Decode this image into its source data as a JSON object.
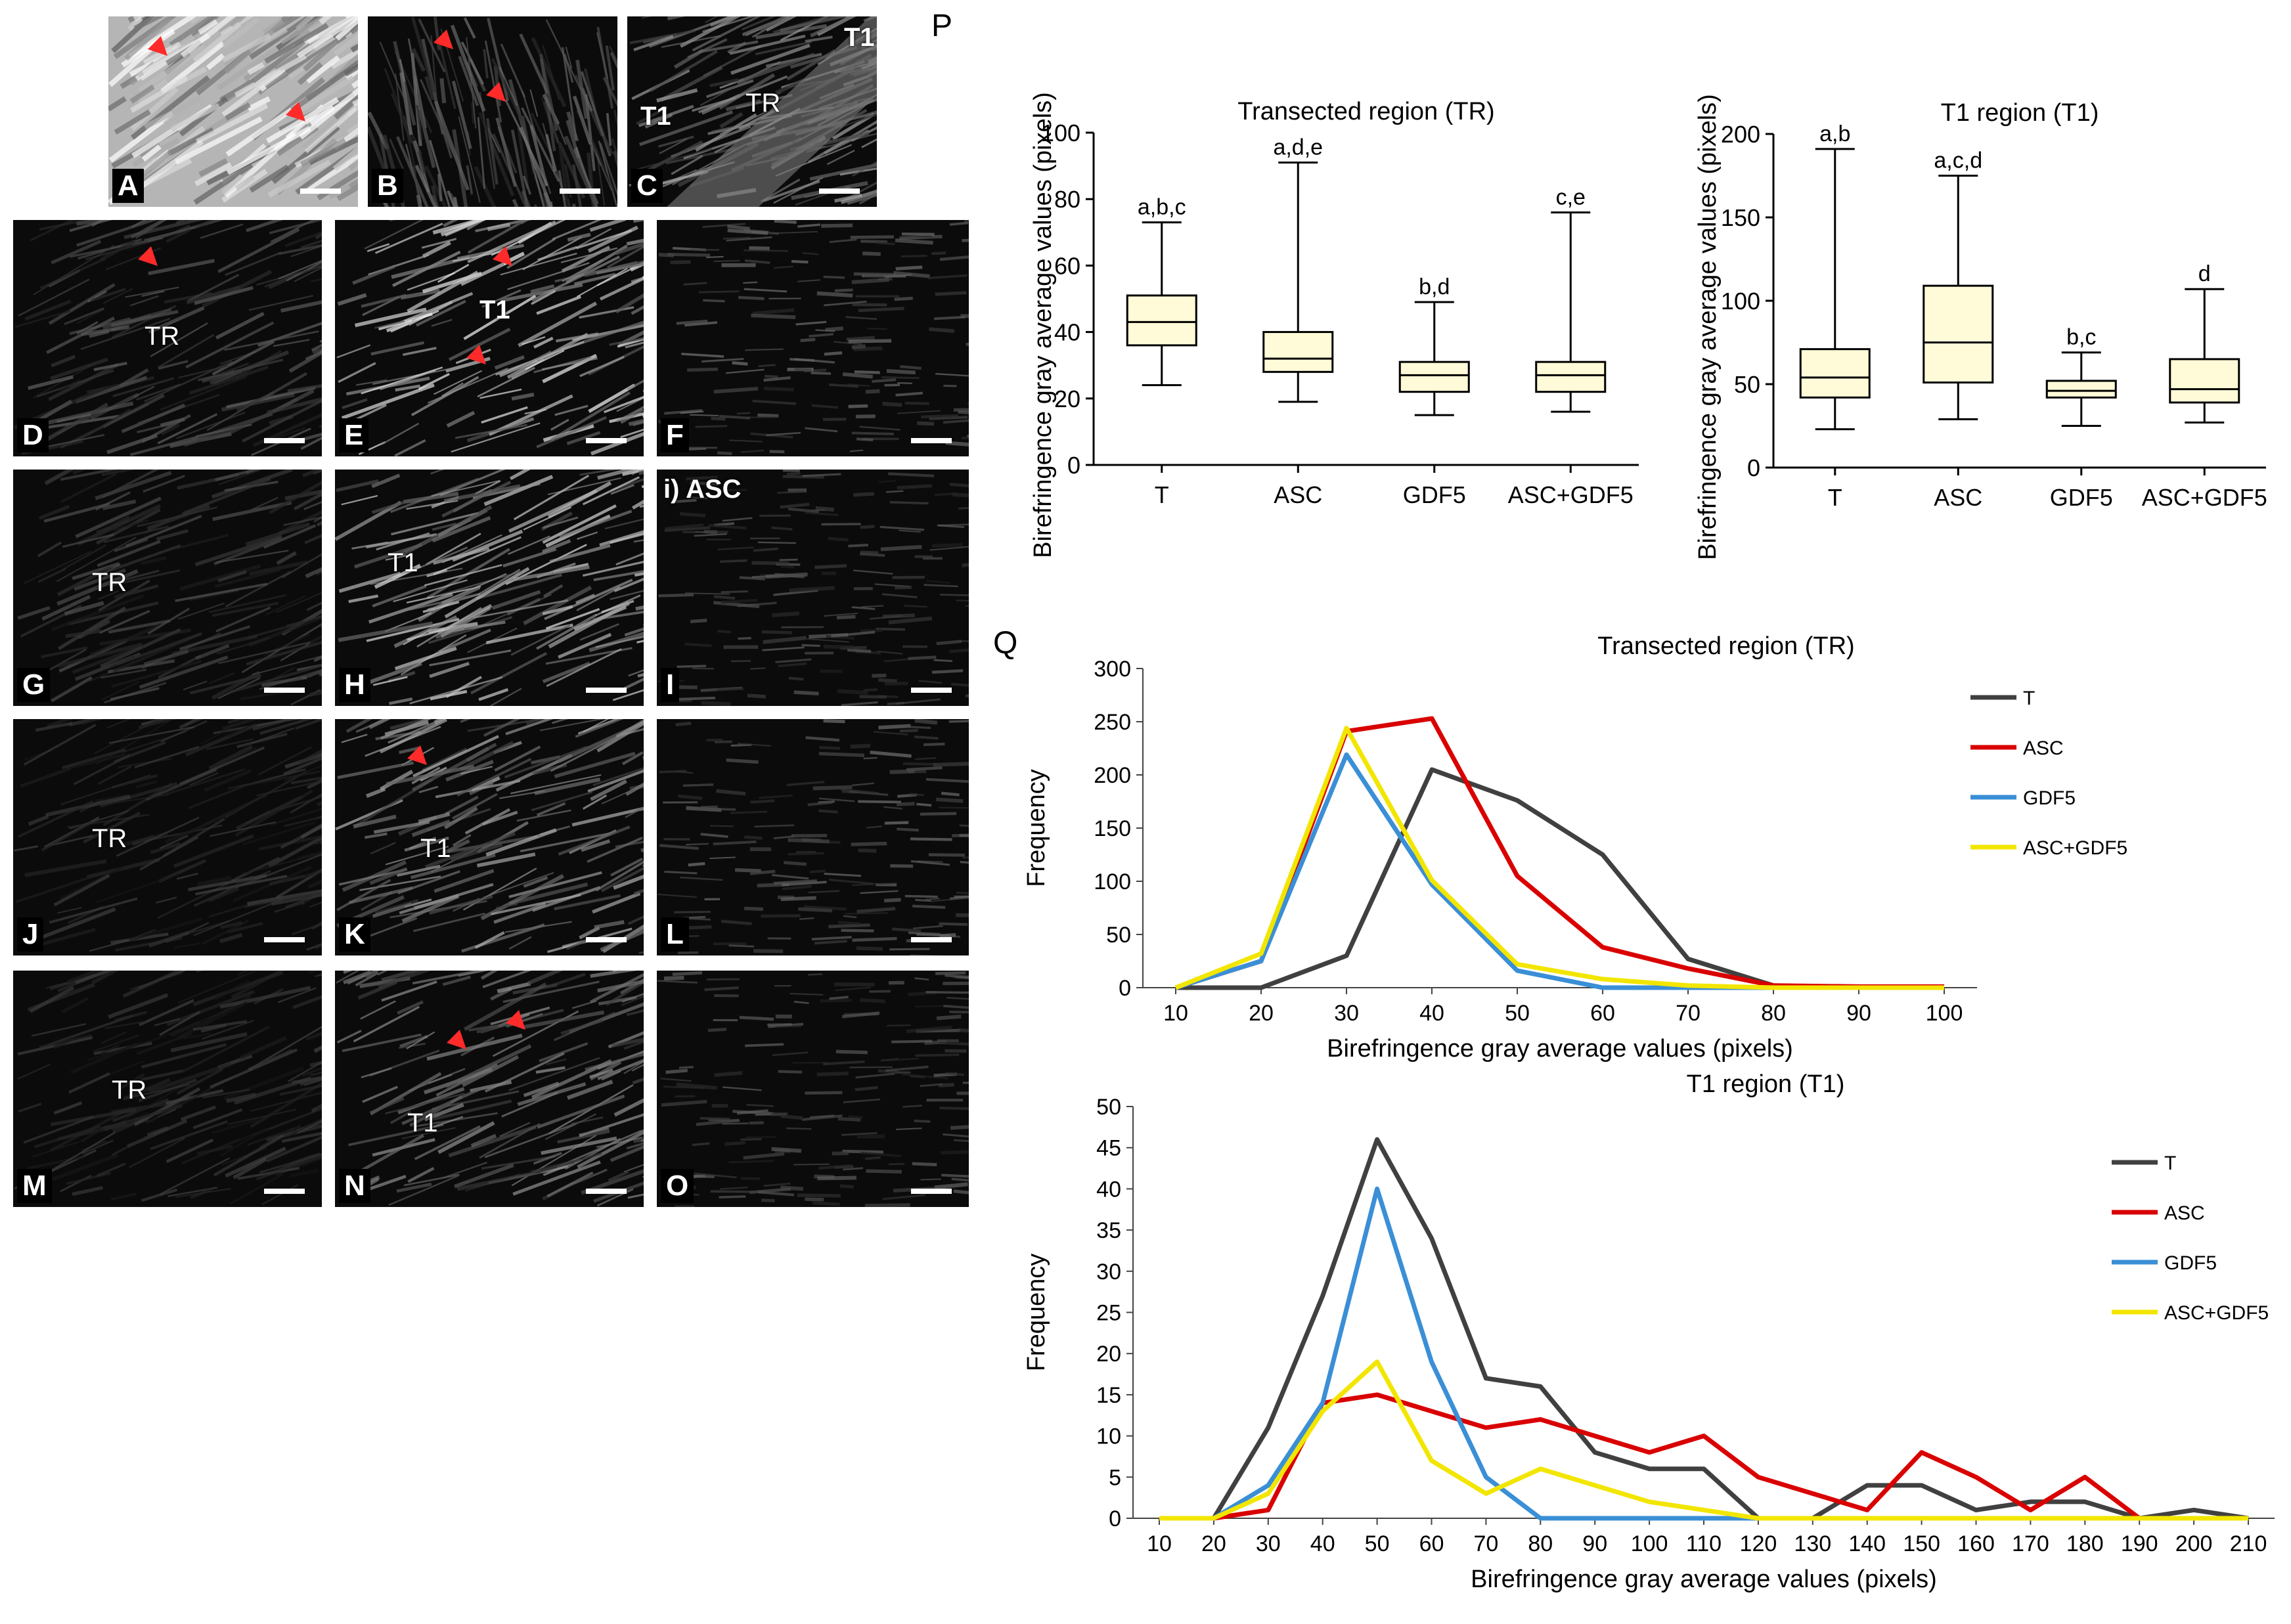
{
  "panels": [
    {
      "id": "A",
      "letter": "A",
      "labels": []
    },
    {
      "id": "B",
      "letter": "B",
      "labels": []
    },
    {
      "id": "C",
      "letter": "C",
      "labels": [
        "T1",
        "TR",
        "T1"
      ]
    },
    {
      "id": "D",
      "letter": "D",
      "labels": [
        "TR"
      ]
    },
    {
      "id": "E",
      "letter": "E",
      "labels": [
        "T1"
      ]
    },
    {
      "id": "F",
      "letter": "F",
      "labels": []
    },
    {
      "id": "G",
      "letter": "G",
      "labels": [
        "TR"
      ]
    },
    {
      "id": "H",
      "letter": "H",
      "labels": [
        "T1"
      ]
    },
    {
      "id": "I",
      "letter": "I",
      "labels": [
        "i) ASC"
      ]
    },
    {
      "id": "J",
      "letter": "J",
      "labels": [
        "TR"
      ]
    },
    {
      "id": "K",
      "letter": "K",
      "labels": [
        "T1"
      ]
    },
    {
      "id": "L",
      "letter": "L",
      "labels": []
    },
    {
      "id": "M",
      "letter": "M",
      "labels": [
        "TR"
      ]
    },
    {
      "id": "N",
      "letter": "N",
      "labels": [
        "T1"
      ]
    },
    {
      "id": "O",
      "letter": "O",
      "labels": []
    }
  ],
  "figure_letters": {
    "P": "P",
    "Q": "Q"
  },
  "colors": {
    "T": "#404040",
    "ASC": "#d90000",
    "GDF5": "#3a8fd6",
    "ASC_GDF5": "#f2e600",
    "box_fill": "#fffbd8",
    "arrow": "#ff2a2a"
  },
  "chart_data": [
    {
      "type": "box",
      "title": "Transected region (TR)",
      "ylabel": "Birefringence gray average values (pixels)",
      "ylim": [
        0,
        100
      ],
      "yticks": [
        0,
        20,
        40,
        60,
        80,
        100
      ],
      "categories": [
        "T",
        "ASC",
        "GDF5",
        "ASC+GDF5"
      ],
      "boxes": [
        {
          "min": 24,
          "q1": 36,
          "median": 43,
          "q3": 51,
          "max": 73,
          "letters": "a,b,c"
        },
        {
          "min": 19,
          "q1": 28,
          "median": 32,
          "q3": 40,
          "max": 91,
          "letters": "a,d,e"
        },
        {
          "min": 15,
          "q1": 22,
          "median": 27,
          "q3": 31,
          "max": 49,
          "letters": "b,d"
        },
        {
          "min": 16,
          "q1": 22,
          "median": 27,
          "q3": 31,
          "max": 76,
          "letters": "c,e"
        }
      ]
    },
    {
      "type": "box",
      "title": "T1 region (T1)",
      "ylabel": "Birefringence gray average values (pixels)",
      "ylim": [
        0,
        200
      ],
      "yticks": [
        0,
        50,
        100,
        150,
        200
      ],
      "categories": [
        "T",
        "ASC",
        "GDF5",
        "ASC+GDF5"
      ],
      "boxes": [
        {
          "min": 23,
          "q1": 42,
          "median": 54,
          "q3": 71,
          "max": 191,
          "letters": "a,b"
        },
        {
          "min": 29,
          "q1": 51,
          "median": 75,
          "q3": 109,
          "max": 175,
          "letters": "a,c,d"
        },
        {
          "min": 25,
          "q1": 42,
          "median": 46,
          "q3": 52,
          "max": 69,
          "letters": "b,c"
        },
        {
          "min": 27,
          "q1": 39,
          "median": 47,
          "q3": 65,
          "max": 107,
          "letters": "d"
        }
      ]
    },
    {
      "type": "line",
      "title": "Transected region (TR)",
      "xlabel": "Birefringence gray average values (pixels)",
      "ylabel": "Frequency",
      "x": [
        10,
        20,
        30,
        40,
        50,
        60,
        70,
        80,
        90,
        100
      ],
      "ylim": [
        0,
        300
      ],
      "yticks": [
        0,
        50,
        100,
        150,
        200,
        250,
        300
      ],
      "series": [
        {
          "name": "T",
          "color_key": "T",
          "values": [
            0,
            0,
            30,
            205,
            176,
            125,
            27,
            2,
            0,
            0
          ]
        },
        {
          "name": "ASC",
          "color_key": "ASC",
          "values": [
            0,
            25,
            241,
            253,
            105,
            38,
            18,
            2,
            1,
            1
          ]
        },
        {
          "name": "GDF5",
          "color_key": "GDF5",
          "values": [
            0,
            25,
            219,
            97,
            16,
            0,
            0,
            0,
            0,
            0
          ]
        },
        {
          "name": "ASC+GDF5",
          "color_key": "ASC_GDF5",
          "values": [
            0,
            32,
            244,
            101,
            22,
            8,
            2,
            0,
            0,
            0
          ]
        }
      ]
    },
    {
      "type": "line",
      "title": "T1 region (T1)",
      "xlabel": "Birefringence gray average values (pixels)",
      "ylabel": "Frequency",
      "x": [
        10,
        20,
        30,
        40,
        50,
        60,
        70,
        80,
        90,
        100,
        110,
        120,
        130,
        140,
        150,
        160,
        170,
        180,
        190,
        200,
        210
      ],
      "ylim": [
        0,
        50
      ],
      "yticks": [
        0,
        5,
        10,
        15,
        20,
        25,
        30,
        35,
        40,
        45,
        50
      ],
      "series": [
        {
          "name": "T",
          "color_key": "T",
          "values": [
            0,
            0,
            11,
            27,
            46,
            34,
            17,
            16,
            8,
            6,
            6,
            0,
            0,
            4,
            4,
            1,
            2,
            2,
            0,
            1,
            0
          ]
        },
        {
          "name": "ASC",
          "color_key": "ASC",
          "values": [
            0,
            0,
            1,
            14,
            15,
            13,
            11,
            12,
            10,
            8,
            10,
            5,
            3,
            1,
            8,
            5,
            1,
            5,
            0,
            0,
            0
          ]
        },
        {
          "name": "GDF5",
          "color_key": "GDF5",
          "values": [
            0,
            0,
            4,
            14,
            40,
            19,
            5,
            0,
            0,
            0,
            0,
            0,
            0,
            0,
            0,
            0,
            0,
            0,
            0,
            0,
            0
          ]
        },
        {
          "name": "ASC+GDF5",
          "color_key": "ASC_GDF5",
          "values": [
            0,
            0,
            3,
            13,
            19,
            7,
            3,
            6,
            4,
            2,
            1,
            0,
            0,
            0,
            0,
            0,
            0,
            0,
            0,
            0,
            0
          ]
        }
      ]
    }
  ]
}
